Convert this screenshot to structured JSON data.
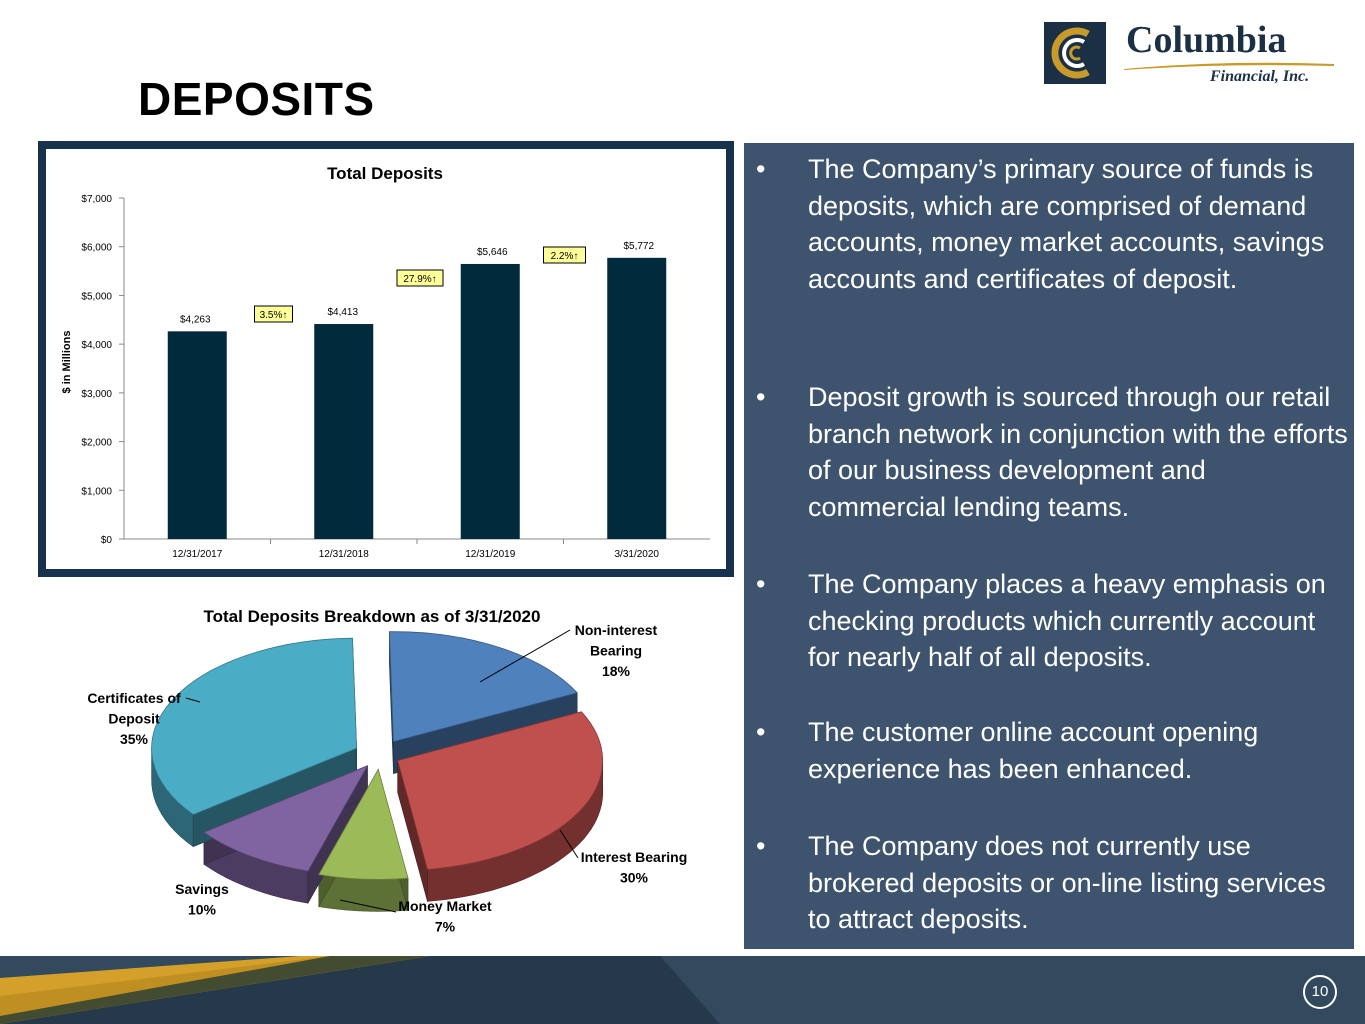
{
  "slide": {
    "title": "DEPOSITS",
    "page_number": "10"
  },
  "logo": {
    "name": "Columbia",
    "subtitle": "Financial, Inc.",
    "colors": {
      "navy": "#1b2f45",
      "gold": "#c89a2a"
    }
  },
  "bullets": [
    {
      "marker": "•",
      "text": "The Company’s primary source of funds is deposits, which are comprised of demand accounts, money market accounts, savings accounts and certificates of deposit."
    },
    {
      "marker": "•",
      "text": "Deposit growth is sourced through our retail branch network in conjunction with the efforts of our business development and commercial lending teams."
    },
    {
      "marker": "•",
      "text": "The Company places a heavy emphasis on checking products which currently account for nearly half of all deposits."
    },
    {
      "marker": "•",
      "text": "The customer online account opening experience has been enhanced."
    },
    {
      "marker": "•",
      "text": "The Company does not currently use brokered deposits or on-line listing services to attract deposits."
    }
  ],
  "chart_data": [
    {
      "type": "bar",
      "title": "Total Deposits",
      "ylabel": "$ in Millions",
      "xlabel": "",
      "categories": [
        "12/31/2017",
        "12/31/2018",
        "12/31/2019",
        "3/31/2020"
      ],
      "values": [
        4263,
        4413,
        5646,
        5772
      ],
      "value_labels": [
        "$4,263",
        "$4,413",
        "$5,646",
        "$5,772"
      ],
      "growth_labels": [
        "3.5%↑",
        "27.9%↑",
        "2.2%↑"
      ],
      "ylim": [
        0,
        7000
      ],
      "yticks": [
        0,
        1000,
        2000,
        3000,
        4000,
        5000,
        6000,
        7000
      ],
      "ytick_labels": [
        "$0",
        "$1,000",
        "$2,000",
        "$3,000",
        "$4,000",
        "$5,000",
        "$6,000",
        "$7,000"
      ],
      "bar_color": "#022a3d",
      "growth_box_color": "#ffff99",
      "grid": false
    },
    {
      "type": "pie",
      "title": "Total Deposits Breakdown as of 3/31/2020",
      "slices": [
        {
          "label": "Non-interest Bearing",
          "label_lines": [
            "Non-interest",
            "Bearing"
          ],
          "value": 18,
          "pct_label": "18%",
          "color": "#4f81bd"
        },
        {
          "label": "Interest Bearing",
          "label_lines": [
            "Interest Bearing"
          ],
          "value": 30,
          "pct_label": "30%",
          "color": "#c0504d"
        },
        {
          "label": "Money Market",
          "label_lines": [
            "Money Market"
          ],
          "value": 7,
          "pct_label": "7%",
          "color": "#9bbb59"
        },
        {
          "label": "Savings",
          "label_lines": [
            "Savings"
          ],
          "value": 10,
          "pct_label": "10%",
          "color": "#8064a2"
        },
        {
          "label": "Certificates of Deposit",
          "label_lines": [
            "Certificates of",
            "Deposit"
          ],
          "value": 35,
          "pct_label": "35%",
          "color": "#4bacc6"
        }
      ]
    }
  ]
}
